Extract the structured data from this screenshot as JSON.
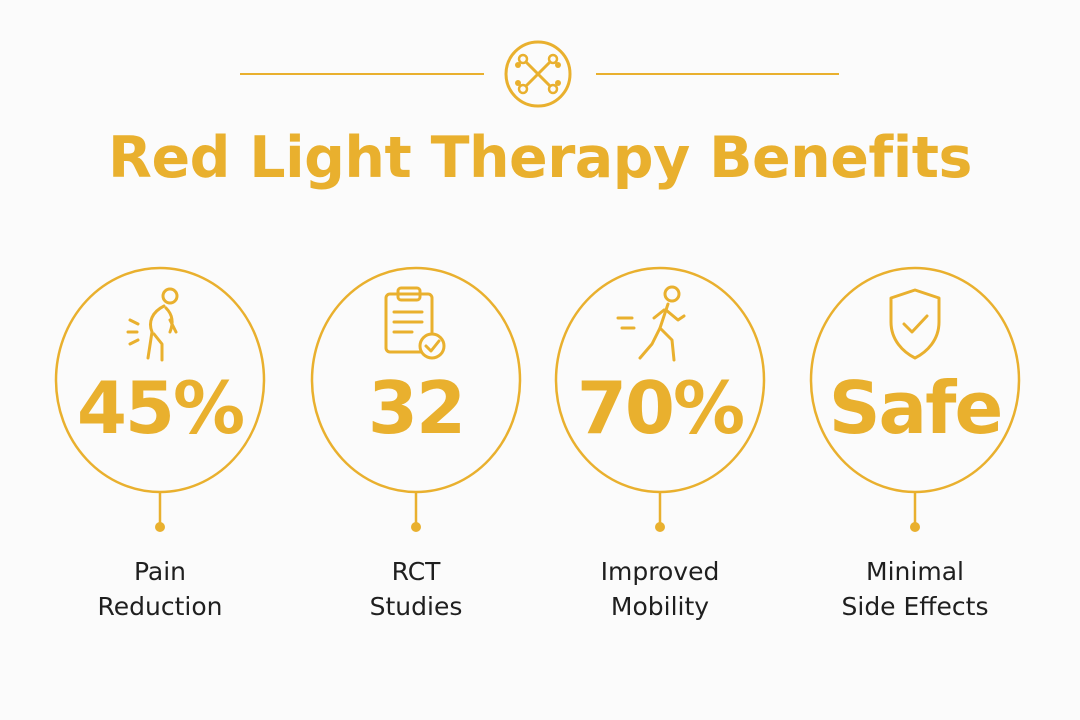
{
  "header": {
    "emblem_icon": "crossed-bones-icon",
    "title": "Red Light Therapy Benefits"
  },
  "accent_color": "#e9b02e",
  "stats": [
    {
      "icon": "back-pain-icon",
      "value": "45%",
      "label_lines": [
        "Pain",
        "Reduction"
      ]
    },
    {
      "icon": "clipboard-check-icon",
      "value": "32",
      "label_lines": [
        "RCT",
        "Studies"
      ]
    },
    {
      "icon": "walking-person-icon",
      "value": "70%",
      "label_lines": [
        "Improved",
        "Mobility"
      ]
    },
    {
      "icon": "shield-check-icon",
      "value": "Safe",
      "label_lines": [
        "Minimal",
        "Side Effects"
      ]
    }
  ]
}
